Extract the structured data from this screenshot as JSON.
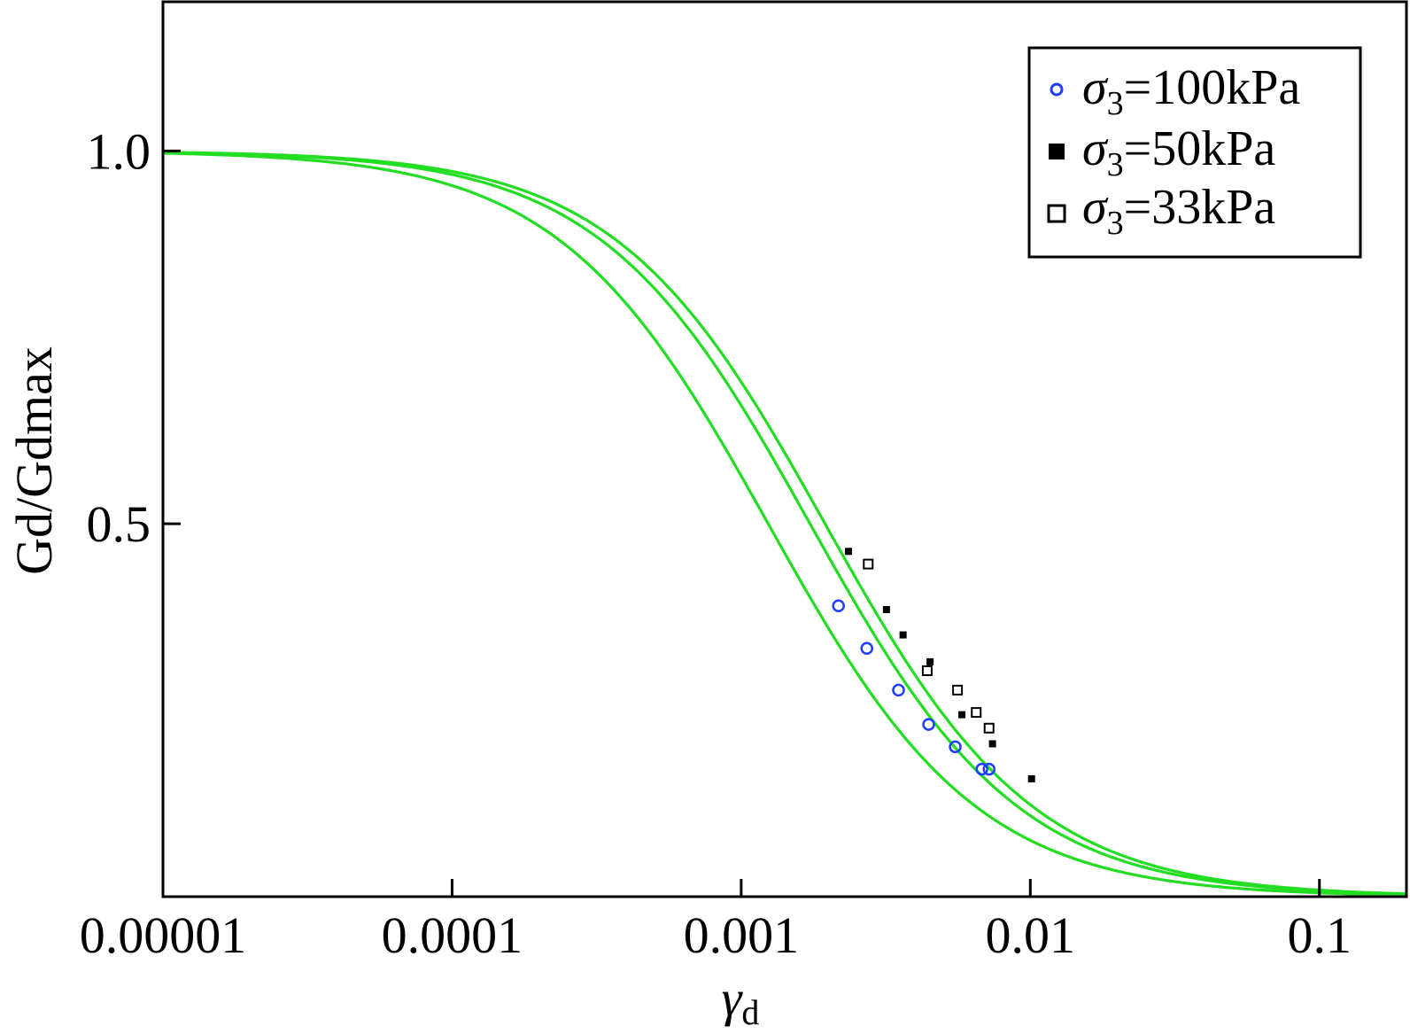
{
  "chart_data": {
    "type": "line",
    "title": "",
    "xlabel": "γ",
    "xlabel_sub": "d",
    "ylabel": "Gd/Gdmax",
    "xscale": "log",
    "xlim": [
      1e-05,
      0.2
    ],
    "ylim": [
      0.0,
      1.2
    ],
    "x_ticks": [
      {
        "value": 1e-05,
        "label": "0.00001"
      },
      {
        "value": 0.0001,
        "label": "0.0001"
      },
      {
        "value": 0.001,
        "label": "0.001"
      },
      {
        "value": 0.01,
        "label": "0.01"
      },
      {
        "value": 0.1,
        "label": "0.1"
      }
    ],
    "y_ticks": [
      {
        "value": 0.5,
        "label": "0.5"
      },
      {
        "value": 1.0,
        "label": "1.0"
      }
    ],
    "grid": false,
    "legend_position": "top-right",
    "legend": [
      {
        "symbol": "σ",
        "sub": "3",
        "text": "=100kPa",
        "marker": "open-circle",
        "color": "#1f3fff"
      },
      {
        "symbol": "σ",
        "sub": "3",
        "text": "=50kPa",
        "marker": "filled-square",
        "color": "#000000"
      },
      {
        "symbol": "σ",
        "sub": "3",
        "text": "=33kPa",
        "marker": "open-square",
        "color": "#000000"
      }
    ],
    "curves": [
      {
        "color": "#22dd22",
        "gamma_ref": 0.00124,
        "exponent": 1.2,
        "x_start": 1e-05,
        "x_end": 0.2
      },
      {
        "color": "#22dd22",
        "gamma_ref": 0.00173,
        "exponent": 1.2,
        "x_start": 1e-05,
        "x_end": 0.2
      },
      {
        "color": "#22dd22",
        "gamma_ref": 0.00195,
        "exponent": 1.2,
        "x_start": 1e-05,
        "x_end": 0.2
      }
    ],
    "series": [
      {
        "marker": "open-circle",
        "color": "#1f3fff",
        "points": [
          {
            "x": 0.00217,
            "y": 0.39
          },
          {
            "x": 0.00272,
            "y": 0.333
          },
          {
            "x": 0.0035,
            "y": 0.277
          },
          {
            "x": 0.00445,
            "y": 0.231
          },
          {
            "x": 0.0055,
            "y": 0.201
          },
          {
            "x": 0.0068,
            "y": 0.171
          },
          {
            "x": 0.0072,
            "y": 0.171
          }
        ]
      },
      {
        "marker": "filled-square",
        "color": "#000000",
        "points": [
          {
            "x": 0.00235,
            "y": 0.463
          },
          {
            "x": 0.00318,
            "y": 0.385
          },
          {
            "x": 0.00363,
            "y": 0.351
          },
          {
            "x": 0.0045,
            "y": 0.315
          },
          {
            "x": 0.0058,
            "y": 0.244
          },
          {
            "x": 0.0074,
            "y": 0.205
          },
          {
            "x": 0.0101,
            "y": 0.158
          }
        ]
      },
      {
        "marker": "open-square",
        "color": "#000000",
        "points": [
          {
            "x": 0.00275,
            "y": 0.446
          },
          {
            "x": 0.0044,
            "y": 0.303
          },
          {
            "x": 0.0056,
            "y": 0.277
          },
          {
            "x": 0.0065,
            "y": 0.247
          },
          {
            "x": 0.0072,
            "y": 0.226
          }
        ]
      }
    ]
  }
}
